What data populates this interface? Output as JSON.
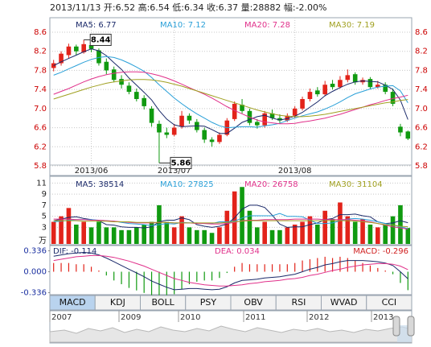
{
  "chart_data": [
    {
      "type": "candlestick",
      "title": "2013/11/13 开:6.52 高:6.54 低:6.34 收:6.37 量:28882 幅:-2.00%",
      "categories": [
        null,
        null,
        null,
        null,
        null,
        "2013/06",
        null,
        null,
        null,
        null,
        null,
        null,
        null,
        null,
        null,
        null,
        "2013/07",
        null,
        null,
        null,
        null,
        null,
        null,
        null,
        null,
        null,
        null,
        null,
        null,
        null,
        null,
        null,
        "2013/08",
        null,
        null,
        null,
        null,
        null,
        null,
        null,
        null,
        null,
        null,
        null,
        null,
        null,
        null,
        null
      ],
      "open": [
        7.85,
        7.95,
        8.12,
        8.3,
        8.18,
        8.33,
        8.22,
        7.98,
        7.82,
        7.62,
        7.48,
        7.35,
        7.22,
        7.0,
        6.68,
        6.5,
        6.45,
        6.62,
        6.85,
        6.72,
        6.55,
        6.35,
        6.3,
        6.45,
        6.78,
        7.08,
        6.95,
        6.72,
        6.65,
        6.9,
        6.8,
        6.75,
        6.85,
        7.0,
        7.2,
        7.38,
        7.3,
        7.52,
        7.45,
        7.6,
        7.72,
        7.55,
        7.62,
        7.45,
        7.5,
        7.35,
        6.62,
        6.52
      ],
      "high": [
        8.02,
        8.2,
        8.36,
        8.34,
        8.44,
        8.38,
        8.26,
        8.05,
        7.88,
        7.7,
        7.55,
        7.42,
        7.28,
        7.05,
        6.75,
        6.6,
        6.68,
        6.95,
        6.9,
        6.78,
        6.6,
        6.4,
        6.5,
        6.8,
        7.15,
        7.2,
        7.0,
        6.78,
        6.95,
        6.98,
        6.88,
        6.9,
        7.05,
        7.25,
        7.42,
        7.45,
        7.58,
        7.6,
        7.68,
        7.82,
        7.76,
        7.65,
        7.66,
        7.58,
        7.55,
        7.42,
        6.68,
        6.54
      ],
      "low": [
        7.78,
        7.9,
        8.05,
        8.12,
        8.15,
        8.18,
        7.9,
        7.72,
        7.55,
        7.42,
        7.3,
        7.15,
        6.98,
        6.62,
        5.86,
        6.38,
        6.42,
        6.58,
        6.68,
        6.5,
        6.28,
        6.2,
        6.26,
        6.42,
        6.74,
        6.9,
        6.65,
        6.58,
        6.6,
        6.76,
        6.7,
        6.72,
        6.8,
        6.96,
        7.15,
        7.25,
        7.26,
        7.4,
        7.42,
        7.55,
        7.5,
        7.5,
        7.4,
        7.42,
        7.3,
        7.05,
        6.42,
        6.34
      ],
      "close": [
        7.95,
        8.15,
        8.3,
        8.2,
        8.35,
        8.25,
        7.95,
        7.8,
        7.6,
        7.5,
        7.35,
        7.2,
        7.05,
        6.7,
        6.5,
        6.45,
        6.6,
        6.85,
        6.75,
        6.55,
        6.35,
        6.3,
        6.45,
        6.75,
        7.1,
        6.95,
        6.7,
        6.65,
        6.9,
        6.8,
        6.75,
        6.85,
        7.0,
        7.2,
        7.35,
        7.3,
        7.5,
        7.45,
        7.6,
        7.7,
        7.55,
        7.6,
        7.45,
        7.5,
        7.35,
        7.1,
        6.5,
        6.37
      ],
      "up_color": "#e2231a",
      "down_color": "#109a10",
      "series": [
        {
          "name": "MA5: 6.77",
          "color": "#1b2a6a",
          "values": [
            7.9,
            7.98,
            8.05,
            8.12,
            8.19,
            8.25,
            8.21,
            8.11,
            7.96,
            7.82,
            7.64,
            7.49,
            7.34,
            7.18,
            6.96,
            6.78,
            6.66,
            6.62,
            6.63,
            6.64,
            6.63,
            6.56,
            6.48,
            6.48,
            6.59,
            6.71,
            6.77,
            6.83,
            6.86,
            6.8,
            6.76,
            6.79,
            6.84,
            6.92,
            7.03,
            7.14,
            7.27,
            7.36,
            7.44,
            7.51,
            7.56,
            7.58,
            7.57,
            7.56,
            7.49,
            7.4,
            7.18,
            6.77
          ]
        },
        {
          "name": "MA10: 7.12",
          "color": "#2aa0d8",
          "values": [
            7.7,
            7.76,
            7.83,
            7.9,
            7.97,
            8.03,
            8.07,
            8.09,
            8.07,
            8.02,
            7.95,
            7.87,
            7.78,
            7.65,
            7.5,
            7.36,
            7.22,
            7.1,
            6.99,
            6.89,
            6.8,
            6.71,
            6.64,
            6.6,
            6.61,
            6.62,
            6.62,
            6.61,
            6.64,
            6.66,
            6.69,
            6.75,
            6.8,
            6.85,
            6.89,
            6.93,
            6.99,
            7.06,
            7.14,
            7.23,
            7.31,
            7.36,
            7.41,
            7.45,
            7.47,
            7.48,
            7.37,
            7.12
          ]
        },
        {
          "name": "MA20: 7.28",
          "color": "#e0308a",
          "values": [
            7.3,
            7.36,
            7.42,
            7.49,
            7.56,
            7.62,
            7.67,
            7.71,
            7.74,
            7.76,
            7.77,
            7.77,
            7.76,
            7.73,
            7.69,
            7.64,
            7.58,
            7.51,
            7.44,
            7.37,
            7.3,
            7.22,
            7.13,
            7.04,
            6.96,
            6.89,
            6.82,
            6.76,
            6.72,
            6.7,
            6.68,
            6.68,
            6.69,
            6.72,
            6.74,
            6.77,
            6.8,
            6.84,
            6.88,
            6.93,
            6.98,
            7.03,
            7.08,
            7.12,
            7.17,
            7.21,
            7.24,
            7.28
          ]
        },
        {
          "name": "MA30: 7.19",
          "color": "#a0a020",
          "values": [
            7.2,
            7.25,
            7.3,
            7.35,
            7.4,
            7.45,
            7.49,
            7.53,
            7.56,
            7.58,
            7.6,
            7.61,
            7.61,
            7.6,
            7.58,
            7.55,
            7.51,
            7.47,
            7.42,
            7.37,
            7.32,
            7.27,
            7.22,
            7.17,
            7.12,
            7.07,
            7.02,
            6.97,
            6.93,
            6.89,
            6.86,
            6.84,
            6.83,
            6.83,
            6.84,
            6.86,
            6.88,
            6.91,
            6.94,
            6.97,
            7.0,
            7.03,
            7.06,
            7.09,
            7.12,
            7.14,
            7.17,
            7.19
          ]
        }
      ],
      "annotations": [
        "8.44",
        "5.86"
      ],
      "ylim": [
        5.8,
        8.6
      ],
      "yticks": [
        8.6,
        8.2,
        7.8,
        7.4,
        {
          "value": 7,
          "label": "7.0"
        },
        6.6,
        6.2,
        5.8
      ],
      "grid": true
    },
    {
      "type": "bar",
      "y_label": "万",
      "values": [
        4,
        5,
        6.5,
        3.5,
        4,
        3,
        4,
        3,
        3,
        2.5,
        2.5,
        3,
        3.5,
        4,
        7,
        4,
        3,
        5,
        3,
        2.5,
        2.5,
        2,
        3,
        6,
        9.5,
        10.3,
        6,
        3,
        4,
        2.5,
        2.5,
        3,
        3.5,
        4,
        5,
        3.5,
        6,
        4.5,
        7.5,
        5,
        4,
        4.5,
        3.5,
        3,
        3.5,
        5,
        7,
        2.89
      ],
      "up_color": "#e2231a",
      "down_color": "#109a10",
      "series": [
        {
          "name": "MA5: 38514",
          "color": "#1b2a6a",
          "values": [
            4.2,
            4.5,
            4.8,
            4.9,
            4.6,
            4.4,
            4.2,
            3.5,
            3.4,
            3.1,
            3,
            3,
            2.9,
            3.1,
            4,
            4.3,
            4.3,
            4.7,
            4.4,
            3.5,
            3.2,
            3,
            3.2,
            3.6,
            4.7,
            6.3,
            7,
            7,
            6.6,
            5.2,
            3.6,
            3,
            3.1,
            3.1,
            3.5,
            3.8,
            4.4,
            4.6,
            5.3,
            5.3,
            5.4,
            5.1,
            4.9,
            4,
            3.7,
            3.8,
            4.2,
            3.85
          ]
        },
        {
          "name": "MA10: 27825",
          "color": "#2aa0d8",
          "values": [
            4,
            4.1,
            4.3,
            4.4,
            4.4,
            4.4,
            4.3,
            4.2,
            4.1,
            3.9,
            3.7,
            3.6,
            3.5,
            3.3,
            3.5,
            3.7,
            3.6,
            3.9,
            3.8,
            3.8,
            3.7,
            3.7,
            4,
            4,
            4.1,
            4.7,
            5.1,
            5.1,
            5.1,
            5.1,
            5.5,
            5,
            5,
            4.9,
            4.3,
            3.7,
            3.7,
            3.8,
            4.2,
            4.5,
            4.6,
            4.5,
            4.3,
            4,
            3.7,
            3.4,
            3.1,
            2.78
          ]
        },
        {
          "name": "MA20: 26758",
          "color": "#e0308a",
          "values": [
            4.5,
            4.5,
            4.5,
            4.4,
            4.4,
            4.3,
            4.3,
            4.2,
            4.1,
            4,
            3.9,
            3.8,
            3.8,
            3.8,
            3.9,
            3.9,
            3.8,
            3.8,
            3.8,
            3.7,
            3.7,
            3.6,
            3.6,
            3.7,
            3.9,
            4.2,
            4.3,
            4.3,
            4.4,
            4.4,
            4.4,
            4.4,
            4.5,
            4.5,
            4.5,
            4.5,
            4.4,
            4.4,
            4.4,
            4.4,
            4.3,
            4.2,
            4.0,
            3.7,
            3.4,
            3.1,
            2.9,
            2.68
          ]
        },
        {
          "name": "MA30: 31104",
          "color": "#a0a020",
          "values": [
            4.2,
            4.2,
            4.2,
            4.2,
            4.1,
            4.1,
            4.1,
            4.1,
            4,
            4,
            4,
            3.9,
            3.9,
            3.9,
            3.9,
            3.9,
            3.8,
            3.8,
            3.8,
            3.8,
            3.8,
            3.8,
            3.8,
            3.9,
            4,
            4.1,
            4.2,
            4.2,
            4.2,
            4.2,
            4.2,
            4.2,
            4.2,
            4.2,
            4.2,
            4.2,
            4.2,
            4.2,
            4.2,
            4.2,
            4.1,
            4.0,
            3.9,
            3.7,
            3.5,
            3.4,
            3.2,
            3.11
          ]
        }
      ],
      "ylim": [
        0,
        11.5
      ],
      "yticks": [
        11,
        9,
        7,
        5,
        3
      ],
      "grid": true
    },
    {
      "type": "macd",
      "up_color": "#e2231a",
      "down_color": "#109a10",
      "series": [
        {
          "name": "DIF: -0.114",
          "color": "#1b2a6a",
          "values": [
            0.25,
            0.27,
            0.29,
            0.3,
            0.31,
            0.3,
            0.27,
            0.22,
            0.16,
            0.1,
            0.04,
            -0.02,
            -0.08,
            -0.15,
            -0.2,
            -0.25,
            -0.29,
            -0.28,
            -0.27,
            -0.27,
            -0.28,
            -0.29,
            -0.28,
            -0.24,
            -0.18,
            -0.14,
            -0.13,
            -0.12,
            -0.1,
            -0.09,
            -0.08,
            -0.06,
            -0.04,
            0.0,
            0.04,
            0.07,
            0.11,
            0.13,
            0.16,
            0.18,
            0.18,
            0.18,
            0.17,
            0.16,
            0.14,
            0.1,
            0.0,
            -0.114
          ]
        },
        {
          "name": "DEA: 0.034",
          "color": "#e0308a",
          "values": [
            0.18,
            0.2,
            0.22,
            0.24,
            0.25,
            0.26,
            0.26,
            0.25,
            0.23,
            0.2,
            0.17,
            0.13,
            0.09,
            0.04,
            -0.01,
            -0.06,
            -0.11,
            -0.14,
            -0.17,
            -0.19,
            -0.21,
            -0.22,
            -0.23,
            -0.23,
            -0.22,
            -0.21,
            -0.19,
            -0.18,
            -0.16,
            -0.15,
            -0.14,
            -0.12,
            -0.11,
            -0.09,
            -0.06,
            -0.04,
            -0.01,
            0.02,
            0.04,
            0.07,
            0.09,
            0.11,
            0.12,
            0.13,
            0.13,
            0.12,
            0.09,
            0.034
          ]
        },
        {
          "name": "MACD: -0.296",
          "color": "#d02020",
          "bars": true,
          "values": [
            0.14,
            0.14,
            0.14,
            0.12,
            0.12,
            0.08,
            0.02,
            -0.06,
            -0.14,
            -0.2,
            -0.26,
            -0.3,
            -0.34,
            -0.38,
            -0.38,
            -0.38,
            -0.36,
            -0.28,
            -0.2,
            -0.16,
            -0.14,
            -0.14,
            -0.1,
            -0.02,
            0.08,
            0.14,
            0.12,
            0.12,
            0.12,
            0.12,
            0.12,
            0.12,
            0.14,
            0.18,
            0.2,
            0.22,
            0.24,
            0.22,
            0.24,
            0.22,
            0.18,
            0.14,
            0.1,
            0.06,
            0.02,
            -0.04,
            -0.18,
            -0.296
          ]
        }
      ],
      "ylim": [
        -0.42,
        0.42
      ],
      "yticks": [
        0.336,
        {
          "value": 0,
          "label": "0.000"
        },
        -0.336
      ],
      "grid": false
    }
  ],
  "tabs": [
    "MACD",
    "KDJ",
    "BOLL",
    "PSY",
    "OBV",
    "RSI",
    "WVAD",
    "CCI"
  ],
  "selected_tab": 0,
  "timeline": {
    "years": [
      "2007",
      "2009",
      "2010",
      "2011",
      "2012",
      "2013"
    ]
  }
}
